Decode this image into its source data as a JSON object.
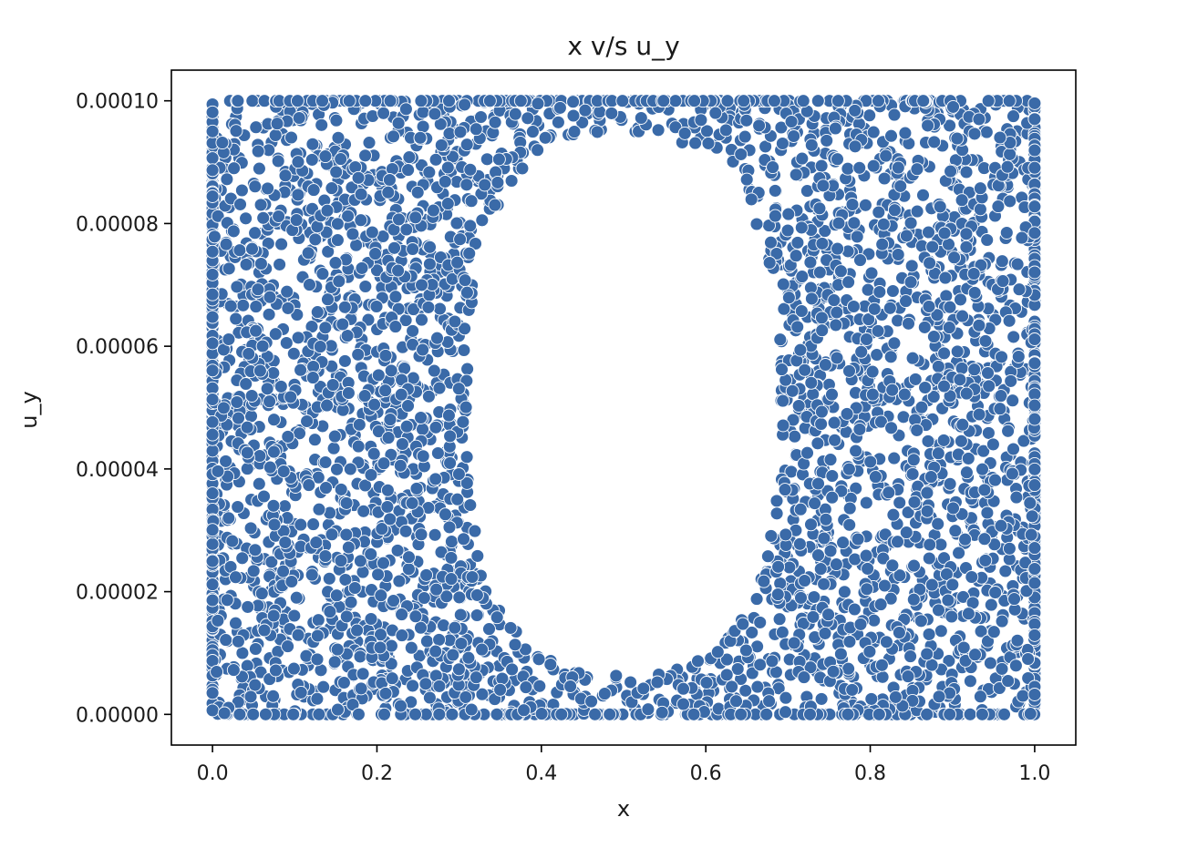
{
  "chart_data": {
    "type": "scatter",
    "title": "x v/s u_y",
    "xlabel": "x",
    "ylabel": "u_y",
    "xlim": [
      -0.05,
      1.05
    ],
    "ylim": [
      -5e-06,
      0.000105
    ],
    "x_ticks": [
      {
        "value": 0.0,
        "label": "0.0"
      },
      {
        "value": 0.2,
        "label": "0.2"
      },
      {
        "value": 0.4,
        "label": "0.4"
      },
      {
        "value": 0.6,
        "label": "0.6"
      },
      {
        "value": 0.8,
        "label": "0.8"
      },
      {
        "value": 1.0,
        "label": "1.0"
      }
    ],
    "y_ticks": [
      {
        "value": 0.0,
        "label": "0.00000"
      },
      {
        "value": 2e-05,
        "label": "0.00002"
      },
      {
        "value": 4e-05,
        "label": "0.00004"
      },
      {
        "value": 6e-05,
        "label": "0.00006"
      },
      {
        "value": 8e-05,
        "label": "0.00008"
      },
      {
        "value": 0.0001,
        "label": "0.00010"
      }
    ],
    "grid": false,
    "legend": "none",
    "marker_color": "#3a6aa8",
    "marker_edge_color": "#ffffff",
    "series": [
      {
        "x_range": [
          0.0,
          1.0
        ],
        "y_range": [
          0.0,
          0.0001
        ],
        "empty_region": {
          "shape": "rounded-oval",
          "x_range": [
            0.31,
            0.69
          ],
          "y_range": [
            6.5e-06,
            9.45e-05
          ]
        },
        "approx_point_count": 4200
      }
    ]
  }
}
